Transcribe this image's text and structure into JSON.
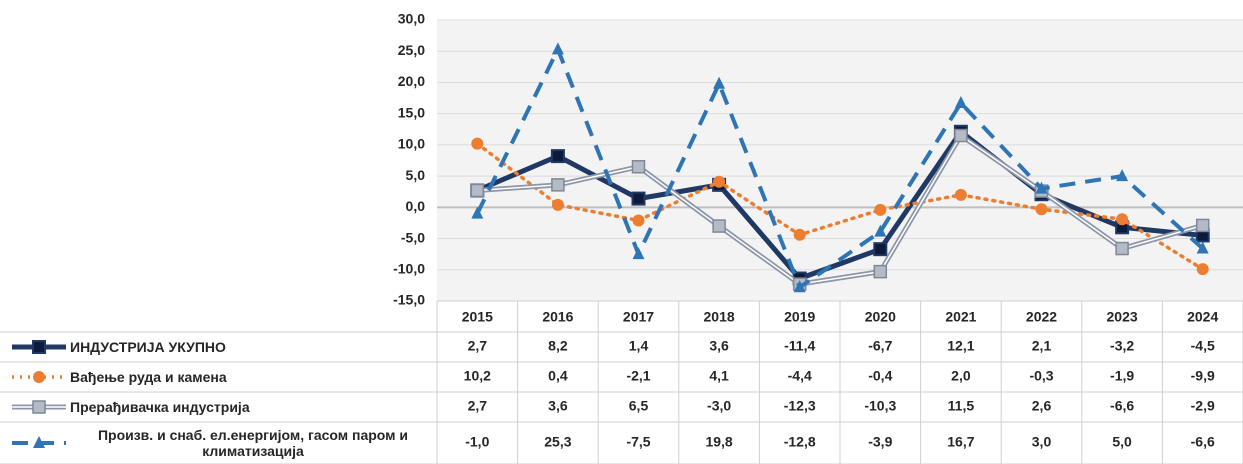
{
  "chart_data": {
    "type": "line",
    "categories": [
      "2015",
      "2016",
      "2017",
      "2018",
      "2019",
      "2020",
      "2021",
      "2022",
      "2023",
      "2024"
    ],
    "ylim": [
      -15,
      30
    ],
    "yticks": [
      {
        "value": -15,
        "label": "-15,0"
      },
      {
        "value": -10,
        "label": "-10,0"
      },
      {
        "value": -5,
        "label": "-5,0"
      },
      {
        "value": 0,
        "label": "0,0"
      },
      {
        "value": 5,
        "label": "5,0"
      },
      {
        "value": 10,
        "label": "10,0"
      },
      {
        "value": 15,
        "label": "15,0"
      },
      {
        "value": 20,
        "label": "20,0"
      },
      {
        "value": 25,
        "label": "25,0"
      },
      {
        "value": 30,
        "label": "30,0"
      }
    ],
    "grid": true,
    "series": [
      {
        "name": "ИНДУСТРИЈА УКУПНО",
        "color": "#1f3864",
        "values": [
          2.7,
          8.2,
          1.4,
          3.6,
          -11.4,
          -6.7,
          12.1,
          2.1,
          -3.2,
          -4.5
        ],
        "value_labels": [
          "2,7",
          "8,2",
          "1,4",
          "3,6",
          "-11,4",
          "-6,7",
          "12,1",
          "2,1",
          "-3,2",
          "-4,5"
        ]
      },
      {
        "name": "Вађење руда и камена",
        "color": "#ed7d31",
        "values": [
          10.2,
          0.4,
          -2.1,
          4.1,
          -4.4,
          -0.4,
          2.0,
          -0.3,
          -1.9,
          -9.9
        ],
        "value_labels": [
          "10,2",
          "0,4",
          "-2,1",
          "4,1",
          "-4,4",
          "-0,4",
          "2,0",
          "-0,3",
          "-1,9",
          "-9,9"
        ]
      },
      {
        "name": "Прерађивачка индустрија",
        "color": "#8c96a8",
        "values": [
          2.7,
          3.6,
          6.5,
          -3.0,
          -12.3,
          -10.3,
          11.5,
          2.6,
          -6.6,
          -2.9
        ],
        "value_labels": [
          "2,7",
          "3,6",
          "6,5",
          "-3,0",
          "-12,3",
          "-10,3",
          "11,5",
          "2,6",
          "-6,6",
          "-2,9"
        ]
      },
      {
        "name": "Произв. и снаб. ел.енергијом, гасом паром и климатизација",
        "color": "#2e75b6",
        "values": [
          -1.0,
          25.3,
          -7.5,
          19.8,
          -12.8,
          -3.9,
          16.7,
          3.0,
          5.0,
          -6.6
        ],
        "value_labels": [
          "-1,0",
          "25,3",
          "-7,5",
          "19,8",
          "-12,8",
          "-3,9",
          "16,7",
          "3,0",
          "5,0",
          "-6,6"
        ]
      }
    ]
  }
}
